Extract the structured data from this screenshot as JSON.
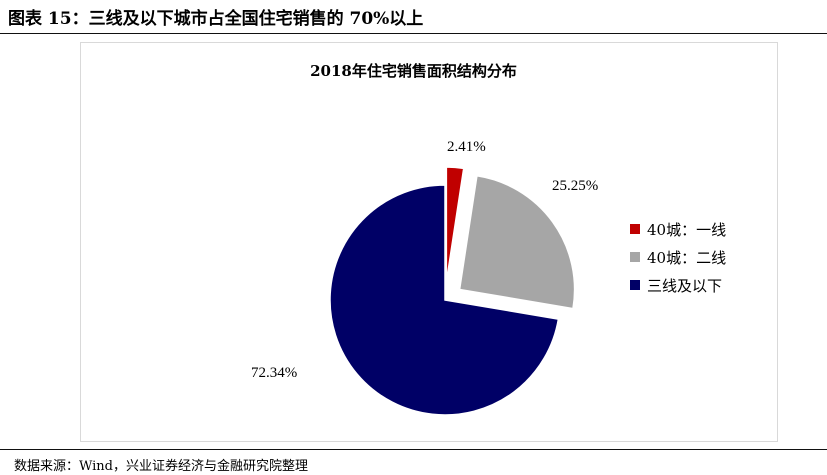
{
  "figure": {
    "title": "图表 15：三线及以下城市占全国住宅销售的 70%以上",
    "source": "数据来源：Wind，兴业证券经济与金融研究院整理"
  },
  "chart_data": {
    "type": "pie",
    "title": "2018年住宅销售面积结构分布",
    "slices": [
      {
        "name": "40城：一线",
        "value": 2.41,
        "label": "2.41%",
        "color": "#c00000",
        "exploded": true
      },
      {
        "name": "40城：二线",
        "value": 25.25,
        "label": "25.25%",
        "color": "#a6a6a6",
        "exploded": true
      },
      {
        "name": "三线及以下",
        "value": 72.34,
        "label": "72.34%",
        "color": "#000066",
        "exploded": false
      }
    ],
    "start_angle": "12 o'clock",
    "direction": "clockwise",
    "legend": "right"
  }
}
